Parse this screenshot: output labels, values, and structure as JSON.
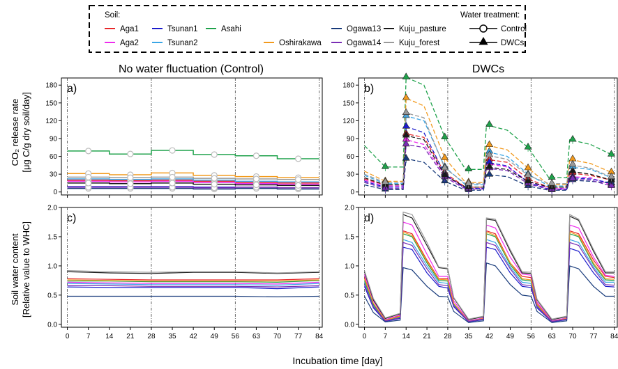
{
  "chart_data": {
    "type": "line",
    "x_label": "Incubation time [day]",
    "x_ticks": [
      0,
      7,
      14,
      21,
      28,
      35,
      42,
      49,
      56,
      63,
      70,
      77,
      84
    ],
    "x_range": [
      -2,
      85
    ],
    "legend": {
      "soil_title": "Soil:",
      "treatment_title": "Water treatment:",
      "treatments": [
        {
          "label": "Control",
          "marker": "open-circle"
        },
        {
          "label": "DWCs",
          "marker": "filled-triangle"
        }
      ],
      "placement": "top-center, dashed box"
    },
    "soils": [
      {
        "name": "Aga1",
        "color": "#e8282a"
      },
      {
        "name": "Aga2",
        "color": "#ee2cee"
      },
      {
        "name": "Tsunan1",
        "color": "#1c1ccc"
      },
      {
        "name": "Tsunan2",
        "color": "#3aa6e6"
      },
      {
        "name": "Asahi",
        "color": "#1fa24b"
      },
      {
        "name": "Oshirakawa",
        "color": "#f29a1d"
      },
      {
        "name": "Ogawa13",
        "color": "#173a7a"
      },
      {
        "name": "Ogawa14",
        "color": "#7a2db5"
      },
      {
        "name": "Kuju_pasture",
        "color": "#1a1a1a"
      },
      {
        "name": "Kuju_forest",
        "color": "#9a9a9a"
      }
    ],
    "co2_panels": {
      "y_label_line1": "CO₂ release rate",
      "y_label_line2": "[μg C/g dry soil/day]",
      "y_ticks": [
        "0",
        "30",
        "60",
        "90",
        "120",
        "150",
        "180"
      ],
      "y_range": [
        -5,
        192
      ],
      "control": {
        "label": "a)",
        "title": "No water fluctuation (Control)",
        "segments": [
          [
            0,
            14
          ],
          [
            14,
            28
          ],
          [
            28,
            42
          ],
          [
            42,
            56
          ],
          [
            56,
            70
          ],
          [
            70,
            84
          ]
        ],
        "marker_days": [
          7,
          21,
          35,
          49,
          63,
          77
        ],
        "series": [
          {
            "name": "Aga1",
            "values": [
              20,
              19,
              20,
              18,
              16,
              15
            ]
          },
          {
            "name": "Aga2",
            "values": [
              18,
              17,
              18,
              16,
              14,
              13
            ]
          },
          {
            "name": "Tsunan1",
            "values": [
              9,
              9,
              9,
              8,
              8,
              7
            ]
          },
          {
            "name": "Tsunan2",
            "values": [
              22,
              21,
              22,
              20,
              18,
              17
            ]
          },
          {
            "name": "Asahi",
            "values": [
              69,
              64,
              70,
              63,
              61,
              56
            ]
          },
          {
            "name": "Oshirakawa",
            "values": [
              31,
              29,
              32,
              28,
              26,
              24
            ]
          },
          {
            "name": "Ogawa13",
            "values": [
              6,
              6,
              6,
              5,
              6,
              5
            ]
          },
          {
            "name": "Ogawa14",
            "values": [
              8,
              8,
              8,
              7,
              8,
              7
            ]
          },
          {
            "name": "Kuju_pasture",
            "values": [
              15,
              14,
              15,
              13,
              12,
              11
            ]
          },
          {
            "name": "Kuju_forest",
            "values": [
              25,
              24,
              25,
              23,
              22,
              21
            ]
          }
        ]
      },
      "dwcs": {
        "label": "b)",
        "title": "DWCs",
        "x": [
          0,
          7,
          13,
          14,
          20,
          27,
          34,
          35,
          40,
          41,
          48,
          55,
          62,
          63,
          68,
          69,
          76,
          83
        ],
        "markers": [
          [
            7,
            1
          ],
          [
            14,
            3
          ],
          [
            27,
            5
          ],
          [
            35,
            7
          ],
          [
            42,
            9
          ],
          [
            55,
            11
          ],
          [
            63,
            13
          ],
          [
            70,
            15
          ],
          [
            83,
            17
          ]
        ],
        "series": [
          {
            "name": "Aga1",
            "values": [
              22,
              12,
              12,
              98,
              92,
              32,
              8,
              8,
              8,
              55,
              50,
              22,
              8,
              8,
              8,
              32,
              28,
              20
            ]
          },
          {
            "name": "Aga2",
            "values": [
              20,
              10,
              10,
              88,
              80,
              28,
              6,
              6,
              6,
              48,
              42,
              18,
              6,
              6,
              6,
              26,
              24,
              12
            ]
          },
          {
            "name": "Tsunan1",
            "values": [
              18,
              8,
              8,
              110,
              100,
              30,
              6,
              6,
              6,
              50,
              44,
              16,
              5,
              5,
              5,
              24,
              22,
              15
            ]
          },
          {
            "name": "Tsunan2",
            "values": [
              28,
              14,
              14,
              128,
              120,
              42,
              12,
              12,
              12,
              68,
              60,
              30,
              10,
              10,
              10,
              42,
              38,
              24
            ]
          },
          {
            "name": "Asahi",
            "values": [
              78,
              42,
              42,
              193,
              180,
              92,
              38,
              38,
              38,
              113,
              104,
              75,
              24,
              24,
              24,
              88,
              80,
              63
            ]
          },
          {
            "name": "Oshirakawa",
            "values": [
              35,
              18,
              18,
              158,
              145,
              57,
              16,
              16,
              16,
              79,
              71,
              40,
              12,
              12,
              12,
              55,
              48,
              33
            ]
          },
          {
            "name": "Ogawa13",
            "values": [
              12,
              4,
              4,
              56,
              50,
              18,
              3,
              3,
              3,
              29,
              26,
              10,
              3,
              3,
              3,
              20,
              18,
              15
            ]
          },
          {
            "name": "Ogawa14",
            "values": [
              16,
              6,
              6,
              80,
              75,
              25,
              5,
              5,
              5,
              40,
              36,
              14,
              4,
              4,
              4,
              22,
              20,
              10
            ]
          },
          {
            "name": "Kuju_pasture",
            "values": [
              24,
              12,
              12,
              95,
              88,
              28,
              8,
              8,
              8,
              42,
              38,
              18,
              8,
              8,
              8,
              35,
              30,
              20
            ]
          },
          {
            "name": "Kuju_forest",
            "values": [
              30,
              16,
              16,
              133,
              125,
              40,
              14,
              14,
              14,
              62,
              55,
              28,
              14,
              14,
              14,
              46,
              40,
              25
            ]
          }
        ]
      }
    },
    "swc_panels": {
      "y_label_line1": "Soil water content",
      "y_label_line2": "[Relative value to WHC]",
      "y_ticks": [
        "0.0",
        "0.5",
        "1.0",
        "1.5",
        "2.0"
      ],
      "y_range": [
        -0.05,
        2.0
      ],
      "control": {
        "label": "c)",
        "x": [
          0,
          14,
          28,
          42,
          56,
          70,
          84
        ],
        "series": [
          {
            "name": "Aga1",
            "values": [
              0.78,
              0.77,
              0.76,
              0.76,
              0.76,
              0.76,
              0.78
            ]
          },
          {
            "name": "Aga2",
            "values": [
              0.72,
              0.71,
              0.7,
              0.7,
              0.7,
              0.69,
              0.72
            ]
          },
          {
            "name": "Tsunan1",
            "values": [
              0.64,
              0.63,
              0.63,
              0.63,
              0.63,
              0.61,
              0.64
            ]
          },
          {
            "name": "Tsunan2",
            "values": [
              0.7,
              0.69,
              0.68,
              0.68,
              0.68,
              0.67,
              0.7
            ]
          },
          {
            "name": "Asahi",
            "values": [
              0.74,
              0.74,
              0.73,
              0.73,
              0.73,
              0.72,
              0.75
            ]
          },
          {
            "name": "Oshirakawa",
            "values": [
              0.76,
              0.75,
              0.74,
              0.74,
              0.74,
              0.74,
              0.76
            ]
          },
          {
            "name": "Ogawa13",
            "values": [
              0.48,
              0.48,
              0.48,
              0.48,
              0.48,
              0.47,
              0.48
            ]
          },
          {
            "name": "Ogawa14",
            "values": [
              0.66,
              0.66,
              0.65,
              0.65,
              0.65,
              0.64,
              0.66
            ]
          },
          {
            "name": "Kuju_pasture",
            "values": [
              0.9,
              0.88,
              0.87,
              0.89,
              0.89,
              0.87,
              0.89
            ]
          },
          {
            "name": "Kuju_forest",
            "values": [
              0.92,
              0.9,
              0.89,
              0.9,
              0.9,
              0.88,
              0.9
            ]
          }
        ]
      },
      "dwcs": {
        "label": "d)",
        "x": [
          0,
          3,
          7,
          12,
          13,
          16,
          21,
          25,
          28,
          30,
          35,
          40,
          41,
          44,
          49,
          53,
          56,
          58,
          63,
          68,
          69,
          72,
          77,
          81,
          84
        ],
        "series": [
          {
            "name": "Aga1",
            "values": [
              0.8,
              0.35,
              0.08,
              0.15,
              1.6,
              1.55,
              1.1,
              0.78,
              0.78,
              0.35,
              0.05,
              0.1,
              1.6,
              1.55,
              1.05,
              0.82,
              0.8,
              0.35,
              0.05,
              0.1,
              1.6,
              1.55,
              1.1,
              0.82,
              0.8
            ]
          },
          {
            "name": "Aga2",
            "values": [
              0.85,
              0.4,
              0.08,
              0.16,
              1.75,
              1.7,
              1.2,
              0.82,
              0.82,
              0.4,
              0.06,
              0.11,
              1.7,
              1.65,
              1.15,
              0.86,
              0.84,
              0.38,
              0.06,
              0.11,
              1.7,
              1.65,
              1.15,
              0.84,
              0.82
            ]
          },
          {
            "name": "Tsunan1",
            "values": [
              0.65,
              0.28,
              0.05,
              0.1,
              1.32,
              1.28,
              0.88,
              0.65,
              0.62,
              0.3,
              0.04,
              0.08,
              1.32,
              1.28,
              0.88,
              0.65,
              0.63,
              0.28,
              0.04,
              0.08,
              1.3,
              1.25,
              0.88,
              0.65,
              0.64
            ]
          },
          {
            "name": "Tsunan2",
            "values": [
              0.72,
              0.32,
              0.06,
              0.12,
              1.45,
              1.4,
              1.0,
              0.72,
              0.7,
              0.34,
              0.05,
              0.09,
              1.45,
              1.4,
              0.98,
              0.72,
              0.7,
              0.32,
              0.05,
              0.09,
              1.45,
              1.4,
              0.98,
              0.72,
              0.72
            ]
          },
          {
            "name": "Asahi",
            "values": [
              0.75,
              0.34,
              0.07,
              0.13,
              1.55,
              1.5,
              1.05,
              0.75,
              0.74,
              0.35,
              0.05,
              0.09,
              1.55,
              1.5,
              1.02,
              0.76,
              0.74,
              0.33,
              0.05,
              0.09,
              1.55,
              1.5,
              1.02,
              0.76,
              0.75
            ]
          },
          {
            "name": "Oshirakawa",
            "values": [
              0.78,
              0.36,
              0.07,
              0.14,
              1.58,
              1.52,
              1.08,
              0.77,
              0.76,
              0.36,
              0.05,
              0.1,
              1.58,
              1.52,
              1.05,
              0.78,
              0.76,
              0.34,
              0.05,
              0.1,
              1.58,
              1.52,
              1.05,
              0.78,
              0.77
            ]
          },
          {
            "name": "Ogawa13",
            "values": [
              0.48,
              0.2,
              0.04,
              0.07,
              0.97,
              0.93,
              0.65,
              0.48,
              0.47,
              0.22,
              0.03,
              0.06,
              1.05,
              1.0,
              0.68,
              0.5,
              0.48,
              0.22,
              0.03,
              0.06,
              1.0,
              0.95,
              0.65,
              0.48,
              0.48
            ]
          },
          {
            "name": "Ogawa14",
            "values": [
              0.68,
              0.3,
              0.06,
              0.11,
              1.4,
              1.35,
              0.95,
              0.68,
              0.66,
              0.32,
              0.05,
              0.09,
              1.4,
              1.35,
              0.95,
              0.68,
              0.66,
              0.3,
              0.05,
              0.09,
              1.4,
              1.35,
              0.95,
              0.68,
              0.67
            ]
          },
          {
            "name": "Kuju_pasture",
            "values": [
              0.9,
              0.42,
              0.1,
              0.18,
              1.88,
              1.82,
              1.35,
              0.97,
              0.95,
              0.45,
              0.08,
              0.13,
              1.8,
              1.78,
              1.25,
              0.88,
              0.87,
              0.42,
              0.08,
              0.13,
              1.85,
              1.78,
              1.25,
              0.88,
              0.88
            ]
          },
          {
            "name": "Kuju_forest",
            "values": [
              0.92,
              0.44,
              0.11,
              0.19,
              1.92,
              1.88,
              1.4,
              0.98,
              0.96,
              0.46,
              0.09,
              0.14,
              1.82,
              1.8,
              1.28,
              0.9,
              0.89,
              0.43,
              0.09,
              0.14,
              1.88,
              1.8,
              1.28,
              0.9,
              0.9
            ]
          }
        ]
      }
    }
  }
}
